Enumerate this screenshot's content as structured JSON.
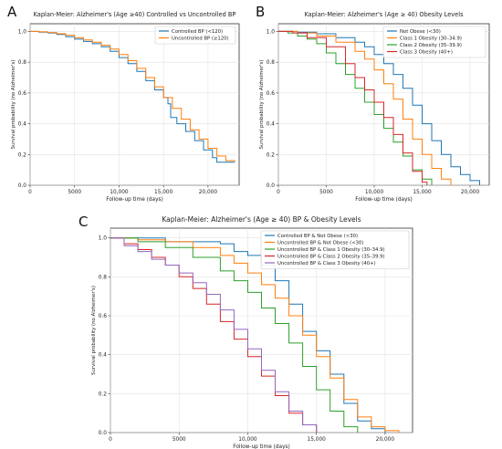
{
  "figure": {
    "panel_letters": [
      "A",
      "B",
      "C"
    ]
  },
  "chart_data": [
    {
      "panel": "A",
      "type": "line",
      "step": true,
      "title": "Kaplan-Meier: Alzheimer's (Age ≥40) Controlled vs Uncontrolled BP",
      "xlabel": "Follow-up time (days)",
      "ylabel": "Survival probability (no Alzheimer's)",
      "xlim": [
        0,
        23500
      ],
      "ylim": [
        0,
        1.05
      ],
      "xticks": [
        0,
        5000,
        10000,
        15000,
        20000
      ],
      "xtick_labels": [
        "0",
        "5000",
        "10,000",
        "15,000",
        "20,000"
      ],
      "yticks": [
        0,
        0.2,
        0.4,
        0.6,
        0.8,
        1.0
      ],
      "ytick_labels": [
        "0.0",
        "0.2",
        "0.4",
        "0.6",
        "0.8",
        "1.0"
      ],
      "grid": true,
      "legend_position": "top-right",
      "series": [
        {
          "name": "Controlled BP (<120)",
          "color": "#1f77b4",
          "points": [
            [
              0,
              1.0
            ],
            [
              1000,
              0.995
            ],
            [
              2000,
              0.99
            ],
            [
              3000,
              0.98
            ],
            [
              4000,
              0.965
            ],
            [
              5000,
              0.95
            ],
            [
              6000,
              0.935
            ],
            [
              7000,
              0.92
            ],
            [
              8000,
              0.9
            ],
            [
              9000,
              0.87
            ],
            [
              10000,
              0.83
            ],
            [
              11000,
              0.79
            ],
            [
              12000,
              0.74
            ],
            [
              13000,
              0.68
            ],
            [
              14000,
              0.62
            ],
            [
              15000,
              0.57
            ],
            [
              15500,
              0.53
            ],
            [
              15800,
              0.44
            ],
            [
              16500,
              0.4
            ],
            [
              17500,
              0.35
            ],
            [
              18500,
              0.29
            ],
            [
              19500,
              0.23
            ],
            [
              20500,
              0.18
            ],
            [
              21000,
              0.15
            ],
            [
              23000,
              0.15
            ]
          ]
        },
        {
          "name": "Uncontrolled BP (≥120)",
          "color": "#ff7f0e",
          "points": [
            [
              0,
              1.0
            ],
            [
              1000,
              0.997
            ],
            [
              2000,
              0.993
            ],
            [
              3000,
              0.985
            ],
            [
              4000,
              0.975
            ],
            [
              5000,
              0.96
            ],
            [
              6000,
              0.945
            ],
            [
              7000,
              0.93
            ],
            [
              8000,
              0.91
            ],
            [
              9000,
              0.885
            ],
            [
              10000,
              0.85
            ],
            [
              11000,
              0.81
            ],
            [
              12000,
              0.76
            ],
            [
              13000,
              0.7
            ],
            [
              14000,
              0.64
            ],
            [
              15000,
              0.57
            ],
            [
              16000,
              0.5
            ],
            [
              17000,
              0.43
            ],
            [
              18000,
              0.36
            ],
            [
              19000,
              0.3
            ],
            [
              20000,
              0.24
            ],
            [
              21000,
              0.19
            ],
            [
              22000,
              0.16
            ],
            [
              23000,
              0.15
            ]
          ]
        }
      ]
    },
    {
      "panel": "B",
      "type": "line",
      "step": true,
      "title": "Kaplan-Meier: Alzheimer's (Age ≥ 40) Obesity Levels",
      "xlabel": "Follow-up time (days)",
      "ylabel": "Survival probability (no Alzheimer's)",
      "xlim": [
        0,
        22000
      ],
      "ylim": [
        0,
        1.05
      ],
      "xticks": [
        0,
        5000,
        10000,
        15000,
        20000
      ],
      "xtick_labels": [
        "0",
        "5000",
        "10,000",
        "15,000",
        "20,000"
      ],
      "yticks": [
        0,
        0.2,
        0.4,
        0.6,
        0.8,
        1.0
      ],
      "ytick_labels": [
        "0.0",
        "0.2",
        "0.4",
        "0.6",
        "0.8",
        "1.0"
      ],
      "grid": true,
      "legend_position": "top-right",
      "series": [
        {
          "name": "Not Obese (<30)",
          "color": "#1f77b4",
          "points": [
            [
              0,
              1.0
            ],
            [
              2000,
              0.995
            ],
            [
              4000,
              0.985
            ],
            [
              6000,
              0.96
            ],
            [
              8000,
              0.93
            ],
            [
              9000,
              0.9
            ],
            [
              10000,
              0.85
            ],
            [
              11000,
              0.79
            ],
            [
              12000,
              0.72
            ],
            [
              13000,
              0.63
            ],
            [
              14000,
              0.52
            ],
            [
              15000,
              0.4
            ],
            [
              16000,
              0.29
            ],
            [
              17000,
              0.2
            ],
            [
              18000,
              0.12
            ],
            [
              19000,
              0.07
            ],
            [
              20000,
              0.03
            ],
            [
              21000,
              0.0
            ]
          ]
        },
        {
          "name": "Class 1 Obesity (30–34.9)",
          "color": "#ff7f0e",
          "points": [
            [
              0,
              1.0
            ],
            [
              2000,
              0.99
            ],
            [
              4000,
              0.97
            ],
            [
              6000,
              0.93
            ],
            [
              8000,
              0.87
            ],
            [
              9000,
              0.82
            ],
            [
              10000,
              0.75
            ],
            [
              11000,
              0.66
            ],
            [
              12000,
              0.56
            ],
            [
              13000,
              0.43
            ],
            [
              14000,
              0.3
            ],
            [
              15000,
              0.2
            ],
            [
              16000,
              0.11
            ],
            [
              17000,
              0.04
            ],
            [
              18000,
              0.0
            ]
          ]
        },
        {
          "name": "Class 2 Obesity (35–39.9)",
          "color": "#2ca02c",
          "points": [
            [
              0,
              1.0
            ],
            [
              1000,
              0.99
            ],
            [
              2000,
              0.97
            ],
            [
              3000,
              0.95
            ],
            [
              4000,
              0.92
            ],
            [
              5000,
              0.86
            ],
            [
              6000,
              0.79
            ],
            [
              7000,
              0.72
            ],
            [
              8000,
              0.63
            ],
            [
              9000,
              0.54
            ],
            [
              10000,
              0.46
            ],
            [
              11000,
              0.37
            ],
            [
              12000,
              0.28
            ],
            [
              13000,
              0.19
            ],
            [
              14000,
              0.1
            ],
            [
              15000,
              0.04
            ],
            [
              16000,
              0.0
            ]
          ]
        },
        {
          "name": "Class 3 Obesity (40+)",
          "color": "#d62728",
          "points": [
            [
              0,
              1.0
            ],
            [
              1500,
              0.99
            ],
            [
              3000,
              0.96
            ],
            [
              5000,
              0.9
            ],
            [
              7000,
              0.79
            ],
            [
              8000,
              0.7
            ],
            [
              9000,
              0.62
            ],
            [
              10000,
              0.54
            ],
            [
              11000,
              0.44
            ],
            [
              12000,
              0.33
            ],
            [
              13000,
              0.21
            ],
            [
              14000,
              0.09
            ],
            [
              15000,
              0.02
            ],
            [
              15500,
              0.0
            ]
          ]
        }
      ]
    },
    {
      "panel": "C",
      "type": "line",
      "step": true,
      "title": "Kaplan-Meier: Alzheimer's (Age ≥ 40) BP & Obesity Levels",
      "xlabel": "Follow-up time (days)",
      "ylabel": "Survival probability (no Alzheimer's)",
      "xlim": [
        0,
        22000
      ],
      "ylim": [
        0,
        1.05
      ],
      "xticks": [
        0,
        5000,
        10000,
        15000,
        20000
      ],
      "xtick_labels": [
        "0",
        "5000",
        "10,000",
        "15,000",
        "20,000"
      ],
      "yticks": [
        0,
        0.2,
        0.4,
        0.6,
        0.8,
        1.0
      ],
      "ytick_labels": [
        "0.0",
        "0.2",
        "0.4",
        "0.6",
        "0.8",
        "1.0"
      ],
      "grid": true,
      "legend_position": "top-right",
      "series": [
        {
          "name": "Controlled BP & Not Obese (<30)",
          "color": "#1f77b4",
          "points": [
            [
              0,
              1.0
            ],
            [
              4000,
              0.98
            ],
            [
              7000,
              0.98
            ],
            [
              8000,
              0.97
            ],
            [
              9000,
              0.93
            ],
            [
              10000,
              0.91
            ],
            [
              11000,
              0.86
            ],
            [
              12000,
              0.78
            ],
            [
              13000,
              0.66
            ],
            [
              14000,
              0.52
            ],
            [
              15000,
              0.42
            ],
            [
              16000,
              0.3
            ],
            [
              17000,
              0.15
            ],
            [
              18000,
              0.06
            ],
            [
              19000,
              0.02
            ],
            [
              20000,
              0.0
            ]
          ]
        },
        {
          "name": "Uncontrolled BP & Not Obese (<30)",
          "color": "#ff7f0e",
          "points": [
            [
              0,
              1.0
            ],
            [
              2000,
              0.99
            ],
            [
              4000,
              0.98
            ],
            [
              6000,
              0.95
            ],
            [
              8000,
              0.91
            ],
            [
              9000,
              0.87
            ],
            [
              10000,
              0.82
            ],
            [
              11000,
              0.76
            ],
            [
              12000,
              0.69
            ],
            [
              13000,
              0.6
            ],
            [
              14000,
              0.5
            ],
            [
              15000,
              0.39
            ],
            [
              16000,
              0.28
            ],
            [
              17000,
              0.17
            ],
            [
              18000,
              0.08
            ],
            [
              19000,
              0.03
            ],
            [
              20000,
              0.01
            ],
            [
              21000,
              0.0
            ]
          ]
        },
        {
          "name": "Uncontrolled BP & Class 1 Obesity (30–34.9)",
          "color": "#2ca02c",
          "points": [
            [
              0,
              1.0
            ],
            [
              2000,
              0.98
            ],
            [
              4000,
              0.95
            ],
            [
              6000,
              0.9
            ],
            [
              8000,
              0.83
            ],
            [
              9000,
              0.78
            ],
            [
              10000,
              0.72
            ],
            [
              11000,
              0.64
            ],
            [
              12000,
              0.56
            ],
            [
              13000,
              0.46
            ],
            [
              14000,
              0.34
            ],
            [
              15000,
              0.22
            ],
            [
              16000,
              0.11
            ],
            [
              17000,
              0.03
            ],
            [
              18000,
              0.0
            ]
          ]
        },
        {
          "name": "Uncontrolled BP & Class 2 Obesity (35–39.9)",
          "color": "#d62728",
          "points": [
            [
              0,
              1.0
            ],
            [
              1000,
              0.97
            ],
            [
              2000,
              0.94
            ],
            [
              3000,
              0.9
            ],
            [
              4000,
              0.86
            ],
            [
              5000,
              0.8
            ],
            [
              6000,
              0.74
            ],
            [
              7000,
              0.66
            ],
            [
              8000,
              0.57
            ],
            [
              9000,
              0.48
            ],
            [
              10000,
              0.39
            ],
            [
              11000,
              0.29
            ],
            [
              12000,
              0.19
            ],
            [
              13000,
              0.1
            ],
            [
              14000,
              0.04
            ],
            [
              15000,
              0.0
            ]
          ]
        },
        {
          "name": "Uncontrolled BP & Class 3 Obesity (40+)",
          "color": "#9467bd",
          "points": [
            [
              0,
              1.0
            ],
            [
              1000,
              0.96
            ],
            [
              2000,
              0.93
            ],
            [
              3000,
              0.89
            ],
            [
              4000,
              0.86
            ],
            [
              5000,
              0.82
            ],
            [
              6000,
              0.77
            ],
            [
              7000,
              0.71
            ],
            [
              8000,
              0.63
            ],
            [
              9000,
              0.53
            ],
            [
              10000,
              0.43
            ],
            [
              11000,
              0.32
            ],
            [
              12000,
              0.21
            ],
            [
              13000,
              0.11
            ],
            [
              14000,
              0.04
            ],
            [
              15000,
              0.0
            ]
          ]
        }
      ]
    }
  ]
}
